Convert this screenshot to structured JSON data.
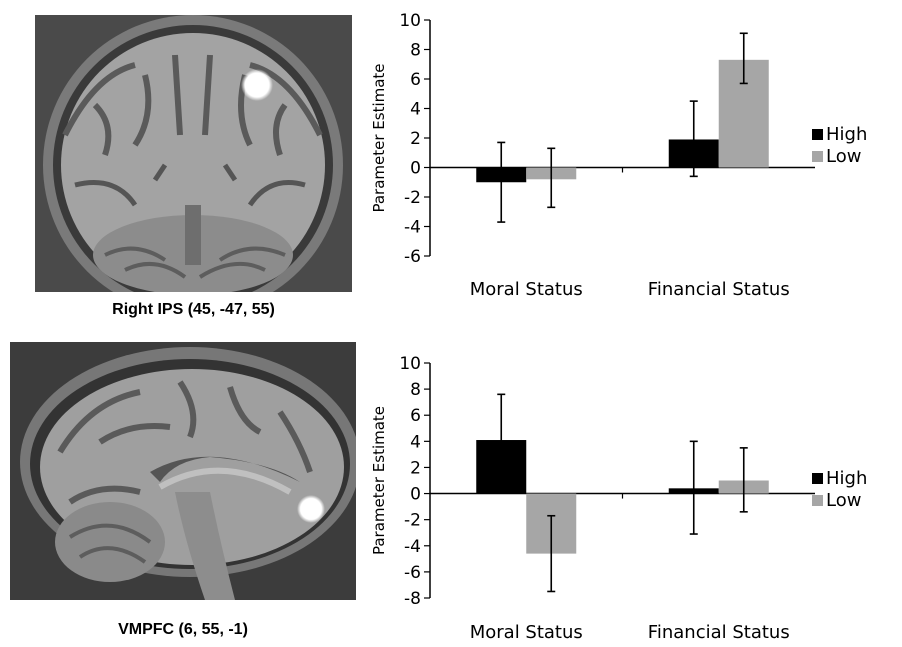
{
  "panels": [
    {
      "caption": "Right IPS (45, -47, 55)"
    },
    {
      "caption": "VMPFC (6, 55, -1)"
    }
  ],
  "colors": {
    "High": "#000000",
    "Low": "#a6a6a6"
  },
  "chart_data": [
    {
      "type": "bar",
      "ylabel": "Parameter Estimate",
      "ylim": [
        -6,
        10
      ],
      "yticks": [
        -6,
        -4,
        -2,
        0,
        2,
        4,
        6,
        8,
        10
      ],
      "categories": [
        "Moral Status",
        "Financial Status"
      ],
      "series": [
        {
          "name": "High",
          "values": [
            -1.0,
            1.9
          ],
          "err": [
            [
              -3.7,
              1.7
            ],
            [
              -0.6,
              4.5
            ]
          ]
        },
        {
          "name": "Low",
          "values": [
            -0.8,
            7.3
          ],
          "err": [
            [
              -2.7,
              1.3
            ],
            [
              5.7,
              9.1
            ]
          ]
        }
      ],
      "legend": "right"
    },
    {
      "type": "bar",
      "ylabel": "Parameter Estimate",
      "ylim": [
        -8,
        10
      ],
      "yticks": [
        -8,
        -6,
        -4,
        -2,
        0,
        2,
        4,
        6,
        8,
        10
      ],
      "categories": [
        "Moral Status",
        "Financial Status"
      ],
      "series": [
        {
          "name": "High",
          "values": [
            4.1,
            0.4
          ],
          "err": [
            [
              0.7,
              7.6
            ],
            [
              -3.1,
              4.0
            ]
          ]
        },
        {
          "name": "Low",
          "values": [
            -4.6,
            1.0
          ],
          "err": [
            [
              -7.5,
              -1.7
            ],
            [
              -1.4,
              3.5
            ]
          ]
        }
      ],
      "legend": "right"
    }
  ]
}
